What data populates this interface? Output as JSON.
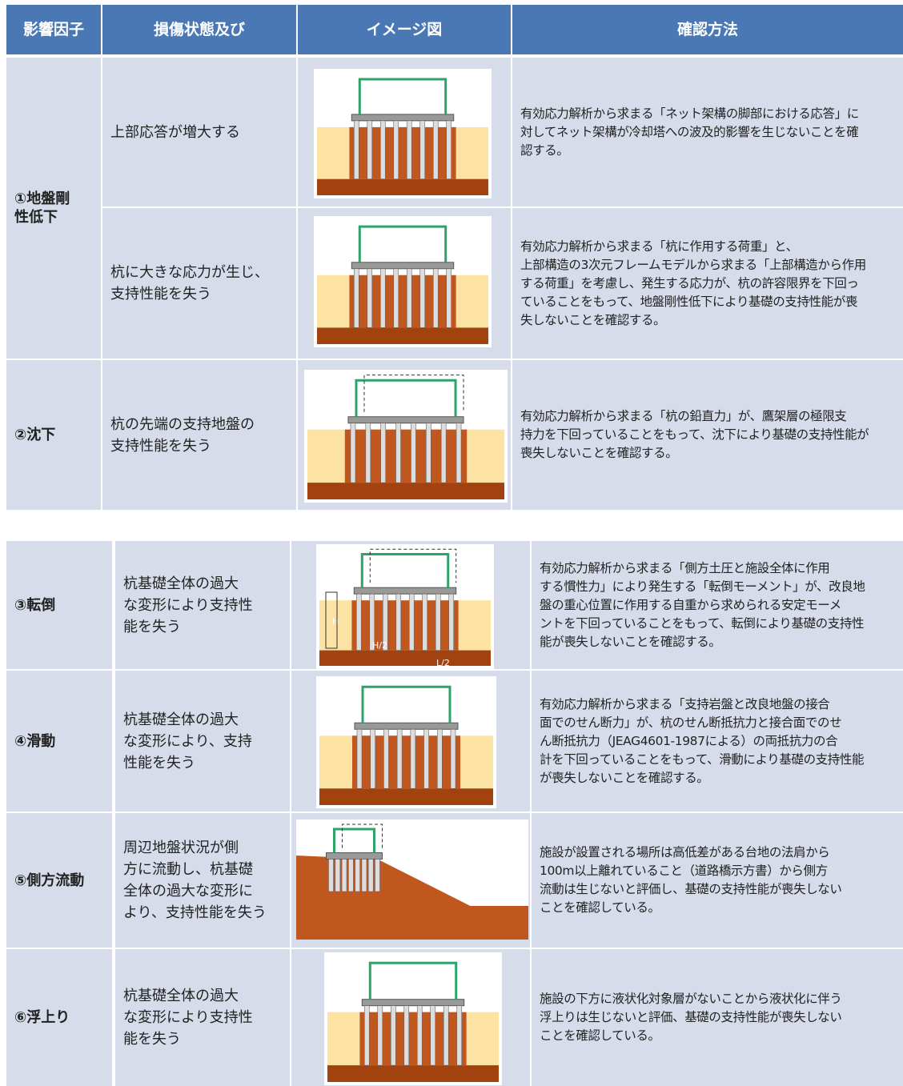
{
  "table_1": {
    "header": [
      "影響因子",
      "損傷状態及び",
      "イメージ図",
      "確認方法"
    ],
    "rows": [
      {
        "factor": [
          "①地盤剛",
          "性低下"
        ],
        "damage": [
          "上部応答が増大する"
        ],
        "method": [
          "有効応力解析から求まる「ネット架構の脚部における応答」に",
          "対してネット架構が冷却塔への波及的影響を生じないことを確",
          "認する。"
        ]
      },
      {
        "damage": [
          "杭に大きな応力が生じ、",
          "支持性能を失う"
        ],
        "method": [
          "有効応力解析から求まる「杭に作用する荷重」と、",
          "上部構造の3次元フレームモデルから求まる「上部構造から作用",
          "する荷重」を考慮し、発生する応力が、杭の許容限界を下回っ",
          "ていることをもって、地盤剛性低下により基礎の支持性能が喪",
          "失しないことを確認する。"
        ]
      },
      {
        "factor": [
          "②沈下"
        ],
        "damage": [
          "杭の先端の支持地盤の",
          "支持性能を失う"
        ],
        "method": [
          "有効応力解析から求まる「杭の鉛直力」が、鷹架層の極限支",
          "持力を下回っていることをもって、沈下により基礎の支持性能が",
          "喪失しないことを確認する。"
        ]
      }
    ]
  },
  "table_2": {
    "rows": [
      {
        "factor": [
          "③転倒"
        ],
        "damage": [
          "杭基礎全体の過大",
          "な変形により支持性",
          "能を失う"
        ],
        "image_labels": [
          "H",
          "H/2",
          "L/2"
        ],
        "method": [
          "有効応力解析から求まる「側方土圧と施設全体に作用",
          "する慣性力」により発生する「転倒モーメント」が、改良地",
          "盤の重心位置に作用する自重から求められる安定モーメ",
          "ントを下回っていることをもって、転倒により基礎の支持性",
          "能が喪失しないことを確認する。"
        ]
      },
      {
        "factor": [
          "④滑動"
        ],
        "damage": [
          "杭基礎全体の過大",
          "な変形により、支持",
          "性能を失う"
        ],
        "method": [
          "有効応力解析から求まる「支持岩盤と改良地盤の接合",
          "面でのせん断力」が、杭のせん断抵抗力と接合面でのせ",
          "ん断抵抗力（JEAG4601-1987による）の両抵抗力の合",
          "計を下回っていることをもって、滑動により基礎の支持性能",
          "が喪失しないことを確認する。"
        ]
      },
      {
        "factor": [
          "⑤側方流動"
        ],
        "damage": [
          "周辺地盤状況が側",
          "方に流動し、杭基礎",
          "全体の過大な変形に",
          "より、支持性能を失う"
        ],
        "method": [
          "施設が設置される場所は高低差がある台地の法肩から",
          "100m以上離れていること（道路橋示方書）から側方",
          "流動は生じないと評価し、基礎の支持性能が喪失しない",
          "ことを確認している。"
        ]
      },
      {
        "factor": [
          "⑥浮上り"
        ],
        "damage": [
          "杭基礎全体の過大",
          "な変形により支持性",
          "能を失う"
        ],
        "method": [
          "施設の下方に液状化対象層がないことから液状化に伴う",
          "浮上りは生じないと評価、基礎の支持性能が喪失しない",
          "ことを確認している。"
        ]
      }
    ]
  }
}
